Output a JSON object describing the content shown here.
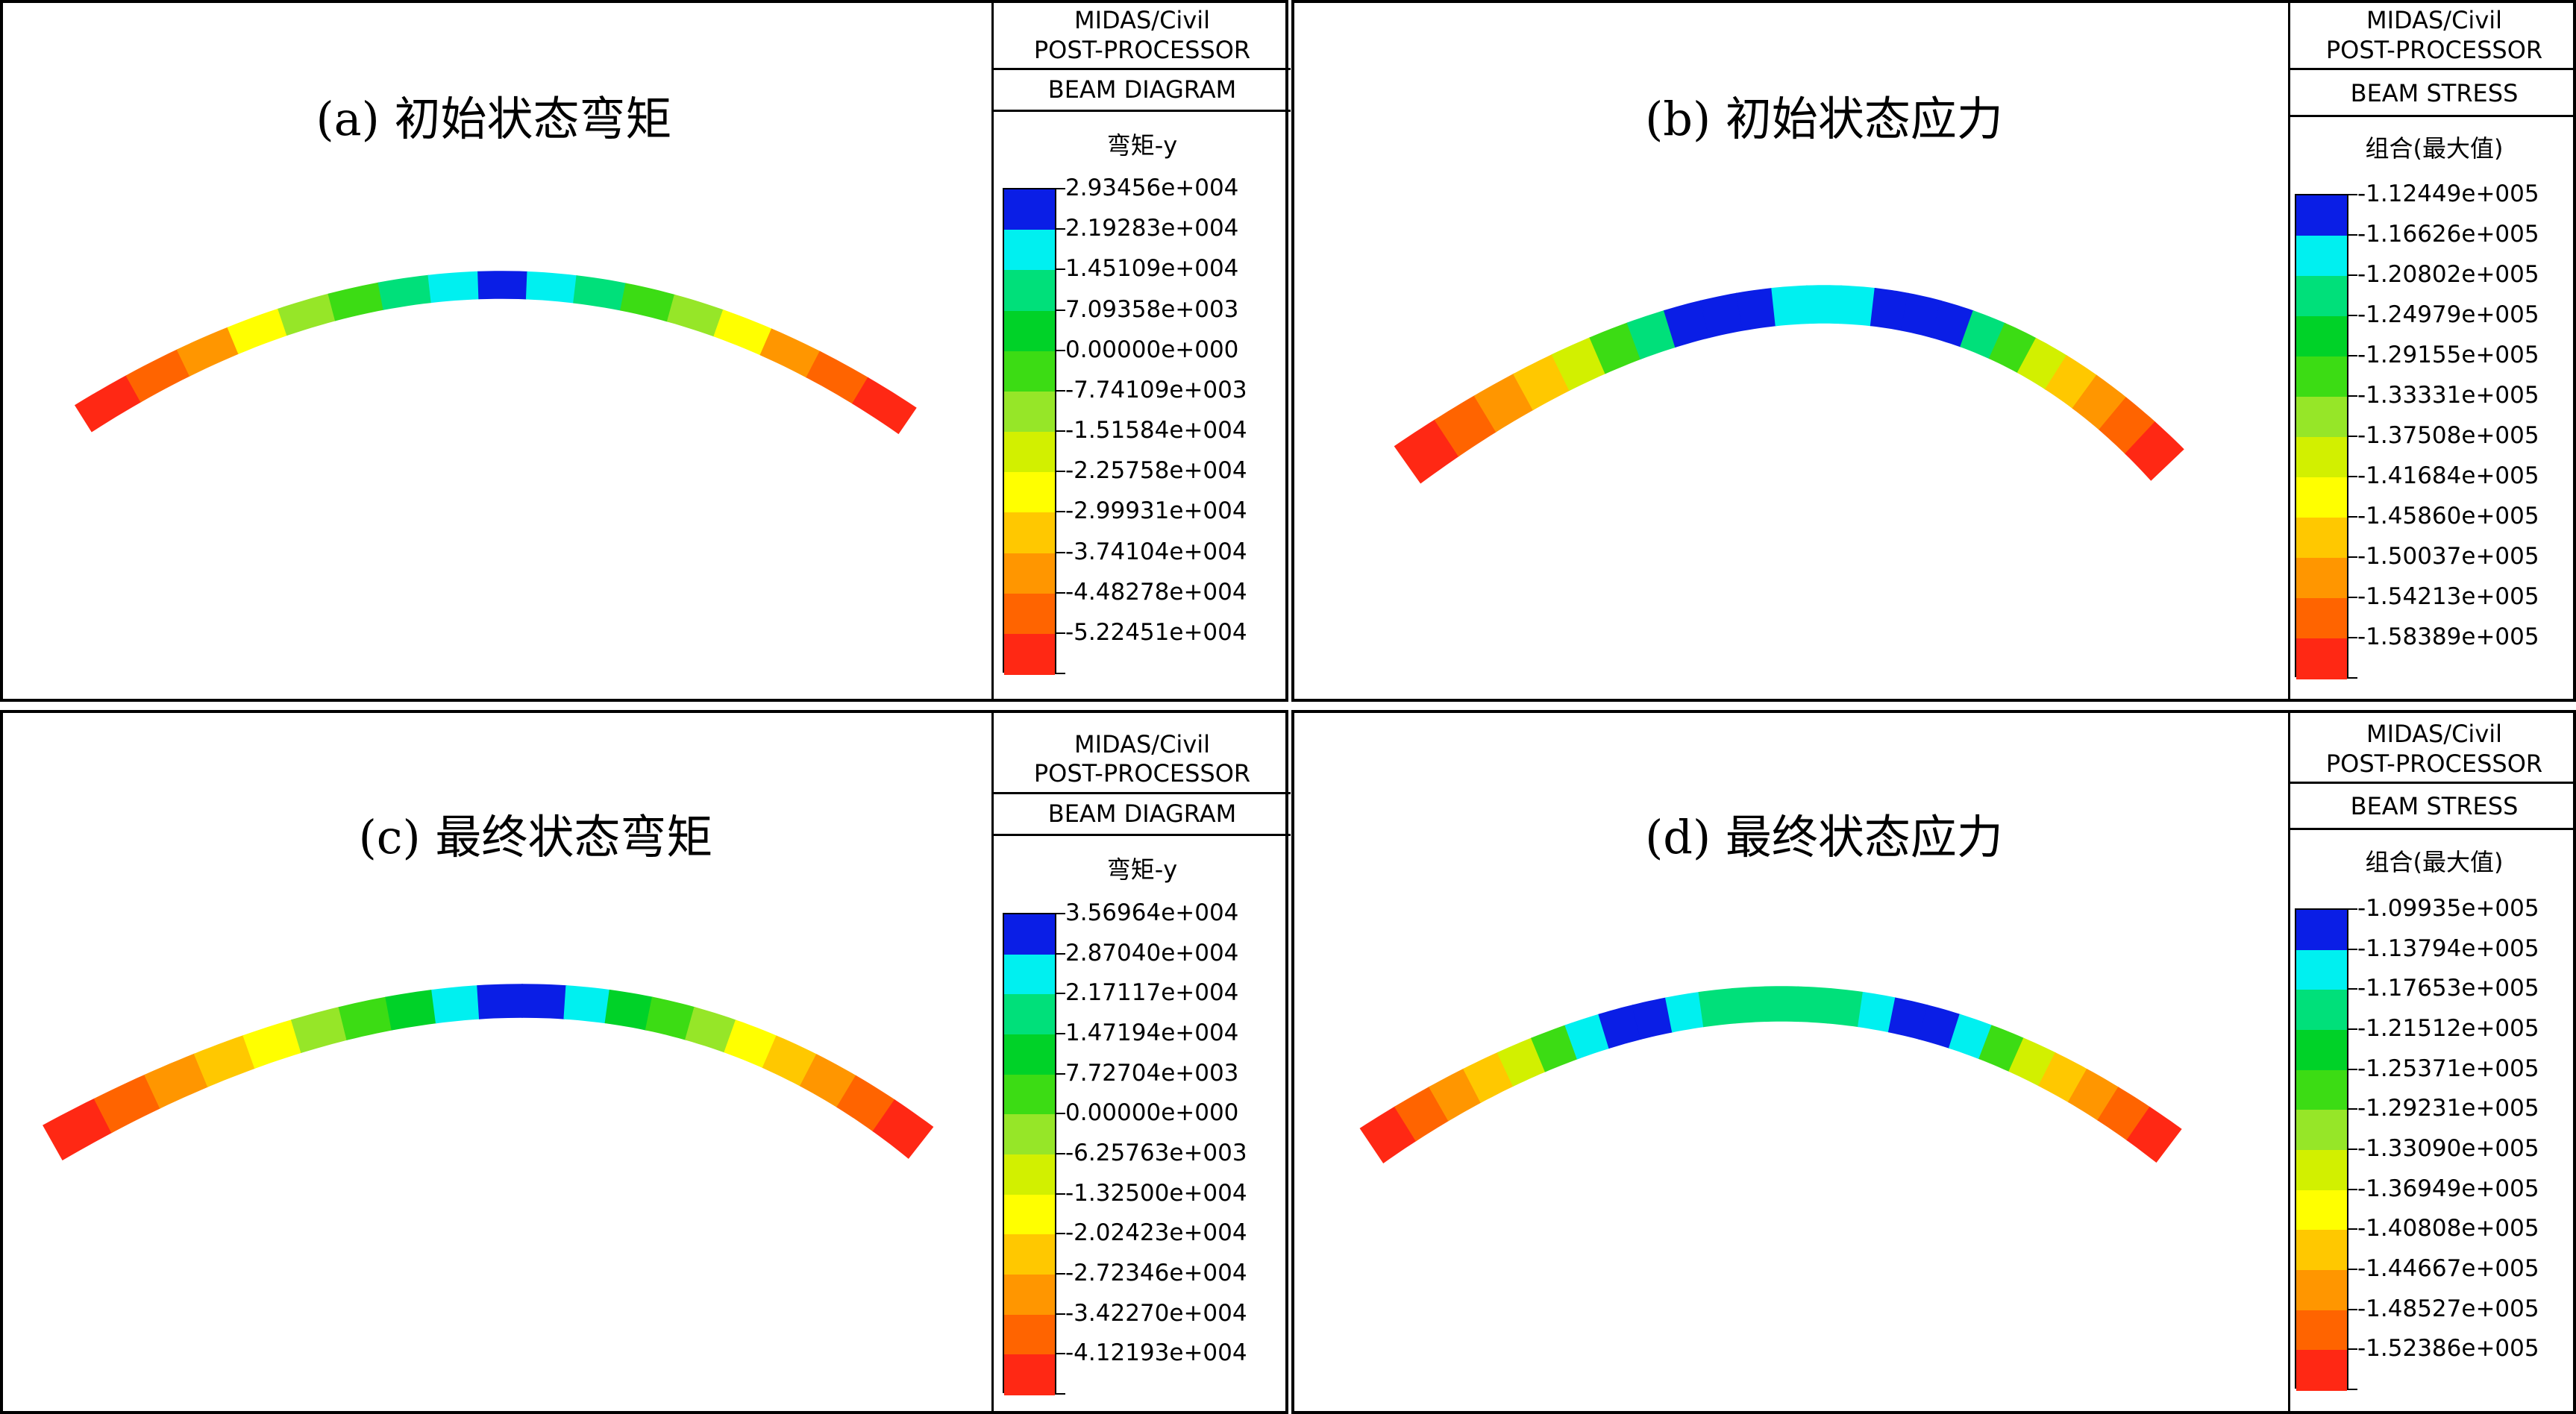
{
  "palette": [
    "#0a1ee6",
    "#00f0f0",
    "#00e07a",
    "#00d228",
    "#3cdc14",
    "#96e628",
    "#d2f000",
    "#ffff00",
    "#ffc800",
    "#ff9600",
    "#ff6400",
    "#ff2814"
  ],
  "panels": [
    {
      "id": "a",
      "title": "(a) 初始状态弯矩",
      "legend": {
        "header1": "MIDAS/Civil",
        "header2": "POST-PROCESSOR",
        "type": "BEAM DIAGRAM",
        "component": "弯矩-y",
        "values": [
          "2.93456e+004",
          "2.19283e+004",
          "1.45109e+004",
          "7.09358e+003",
          "0.00000e+000",
          "-7.74109e+003",
          "-1.51584e+004",
          "-2.25758e+004",
          "-2.99931e+004",
          "-3.74104e+004",
          "-4.48278e+004",
          "-5.22451e+004"
        ]
      },
      "segments": [
        11,
        10,
        9,
        7,
        5,
        4,
        2,
        1,
        0,
        1,
        2,
        4,
        5,
        7,
        9,
        10,
        11
      ]
    },
    {
      "id": "b",
      "title": "(b) 初始状态应力",
      "legend": {
        "header1": "MIDAS/Civil",
        "header2": "POST-PROCESSOR",
        "type": "BEAM STRESS",
        "component": "组合(最大值)",
        "values": [
          "-1.12449e+005",
          "-1.16626e+005",
          "-1.20802e+005",
          "-1.24979e+005",
          "-1.29155e+005",
          "-1.33331e+005",
          "-1.37508e+005",
          "-1.41684e+005",
          "-1.45860e+005",
          "-1.50037e+005",
          "-1.54213e+005",
          "-1.58389e+005"
        ]
      },
      "segments": [
        11,
        10,
        9,
        8,
        6,
        4,
        2,
        0,
        0,
        0,
        1,
        1,
        1,
        0,
        0,
        0,
        2,
        4,
        6,
        8,
        9,
        10,
        11
      ]
    },
    {
      "id": "c",
      "title": "(c) 最终状态弯矩",
      "legend": {
        "header1": "MIDAS/Civil",
        "header2": "POST-PROCESSOR",
        "type": "BEAM DIAGRAM",
        "component": "弯矩-y",
        "values": [
          "3.56964e+004",
          "2.87040e+004",
          "2.17117e+004",
          "1.47194e+004",
          "7.72704e+003",
          "0.00000e+000",
          "-6.25763e+003",
          "-1.32500e+004",
          "-2.02423e+004",
          "-2.72346e+004",
          "-3.42270e+004",
          "-4.12193e+004"
        ]
      },
      "segments": [
        11,
        10,
        9,
        8,
        7,
        5,
        4,
        3,
        1,
        0,
        0,
        1,
        3,
        4,
        5,
        7,
        8,
        9,
        10,
        11
      ]
    },
    {
      "id": "d",
      "title": "(d) 最终状态应力",
      "legend": {
        "header1": "MIDAS/Civil",
        "header2": "POST-PROCESSOR",
        "type": "BEAM STRESS",
        "component": "组合(最大值)",
        "values": [
          "-1.09935e+005",
          "-1.13794e+005",
          "-1.17653e+005",
          "-1.21512e+005",
          "-1.25371e+005",
          "-1.29231e+005",
          "-1.33090e+005",
          "-1.36949e+005",
          "-1.40808e+005",
          "-1.44667e+005",
          "-1.48527e+005",
          "-1.52386e+005"
        ]
      },
      "segments": [
        11,
        10,
        9,
        8,
        6,
        4,
        1,
        0,
        0,
        1,
        2,
        2,
        2,
        2,
        2,
        1,
        0,
        0,
        1,
        4,
        6,
        8,
        9,
        10,
        11
      ]
    }
  ]
}
